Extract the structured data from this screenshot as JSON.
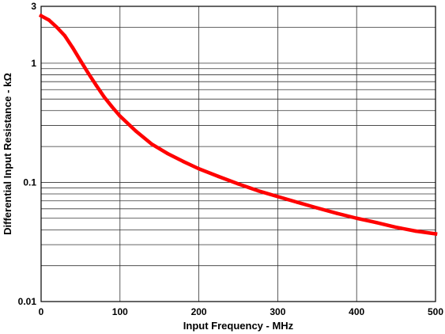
{
  "chart_data": {
    "type": "line",
    "xlabel": "Input Frequency - MHz",
    "ylabel": "Differential Input Resistance - kΩ",
    "xlim": [
      0,
      500
    ],
    "ylim": [
      0.01,
      3
    ],
    "y_scale": "log",
    "grid": true,
    "x_ticks": [
      0,
      100,
      200,
      300,
      400,
      500
    ],
    "x_tick_labels": [
      "0",
      "100",
      "200",
      "300",
      "400",
      "500"
    ],
    "y_ticks": [
      0.01,
      0.1,
      1,
      3
    ],
    "y_tick_labels": [
      "0.01",
      "0.1",
      "1",
      "3"
    ],
    "series": [
      {
        "color": "#ff0000",
        "x": [
          0,
          10,
          20,
          30,
          40,
          50,
          60,
          70,
          80,
          90,
          100,
          120,
          140,
          160,
          180,
          200,
          225,
          250,
          275,
          300,
          325,
          350,
          375,
          400,
          425,
          450,
          475,
          500
        ],
        "y": [
          2.5,
          2.3,
          2.0,
          1.7,
          1.35,
          1.05,
          0.82,
          0.65,
          0.52,
          0.43,
          0.36,
          0.27,
          0.21,
          0.175,
          0.15,
          0.13,
          0.112,
          0.097,
          0.085,
          0.076,
          0.068,
          0.061,
          0.055,
          0.05,
          0.046,
          0.042,
          0.039,
          0.037
        ]
      }
    ]
  }
}
